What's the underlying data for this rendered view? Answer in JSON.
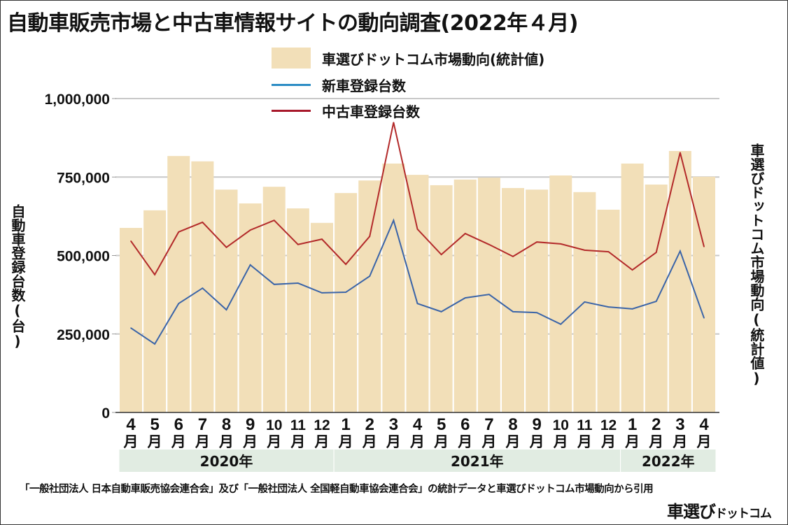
{
  "title": "自動車販売市場と中古車情報サイトの動向調査(2022年４月)",
  "footer_note": "「一般社団法人 日本自動車販売協会連合会」及び「一般社団法人 全国軽自動車協会連合会」の統計データと車選びドットコム市場動向から引用",
  "brand": {
    "main": "車選び",
    "sub": "ドットコム"
  },
  "colors": {
    "bar": "#f2dfb8",
    "new_car": "#3a64a8",
    "used_car": "#b32a2a",
    "grid": "#c8c8c8",
    "year_band": "#e1ece2"
  },
  "chart_data": {
    "type": "bar+line",
    "title": "自動車販売市場と中古車情報サイトの動向調査(2022年４月)",
    "ylabel": "自動車登録台数(台)",
    "y2label": "車選びドットコム市場動向(統計値)",
    "ylim": [
      0,
      1000000
    ],
    "yticks": [
      0,
      250000,
      500000,
      750000,
      1000000
    ],
    "ytick_labels": [
      "0",
      "250,000",
      "500,000",
      "750,000",
      "1,000,000"
    ],
    "grid": true,
    "legend_position": "top-center",
    "categories": [
      "4",
      "5",
      "6",
      "7",
      "8",
      "9",
      "10",
      "11",
      "12",
      "1",
      "2",
      "3",
      "4",
      "5",
      "6",
      "7",
      "8",
      "9",
      "10",
      "11",
      "12",
      "1",
      "2",
      "3",
      "4"
    ],
    "month_suffix": "月",
    "year_groups": [
      {
        "label": "2020年",
        "start": 0,
        "end": 8
      },
      {
        "label": "2021年",
        "start": 9,
        "end": 20
      },
      {
        "label": "2022年",
        "start": 21,
        "end": 24
      }
    ],
    "series": [
      {
        "name": "車選びドットコム市場動向(統計値)",
        "type": "bar",
        "values": [
          588000,
          644000,
          817000,
          800000,
          710000,
          666000,
          719000,
          650000,
          604000,
          699000,
          739000,
          793000,
          757000,
          724000,
          742000,
          748000,
          715000,
          710000,
          755000,
          702000,
          646000,
          793000,
          726000,
          833000,
          751000
        ]
      },
      {
        "name": "新車登録台数",
        "type": "line",
        "values": [
          269000,
          218000,
          347000,
          396000,
          327000,
          470000,
          408000,
          412000,
          381000,
          383000,
          434000,
          612000,
          347000,
          321000,
          365000,
          376000,
          321000,
          318000,
          281000,
          352000,
          336000,
          330000,
          354000,
          514000,
          301000
        ]
      },
      {
        "name": "中古車登録台数",
        "type": "line",
        "values": [
          546000,
          439000,
          575000,
          606000,
          526000,
          581000,
          612000,
          535000,
          552000,
          472000,
          561000,
          924000,
          584000,
          503000,
          570000,
          535000,
          497000,
          543000,
          537000,
          517000,
          512000,
          454000,
          510000,
          828000,
          528000
        ]
      }
    ]
  }
}
